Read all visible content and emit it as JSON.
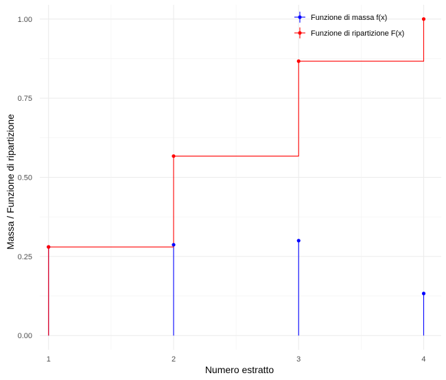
{
  "chart_data": {
    "type": "line",
    "xlabel": "Numero estratto",
    "ylabel": "Massa / Funzione di ripartizione",
    "x": [
      1,
      2,
      3,
      4
    ],
    "xlim": [
      0.93,
      4.14
    ],
    "ylim": [
      -0.045,
      1.045
    ],
    "x_ticks": [
      1,
      2,
      3,
      4
    ],
    "x_tick_labels": [
      "1",
      "2",
      "3",
      "4"
    ],
    "y_ticks": [
      0,
      0.25,
      0.5,
      0.75,
      1
    ],
    "y_tick_labels": [
      "0.00",
      "0.25",
      "0.50",
      "0.75",
      "1.00"
    ],
    "grid": true,
    "legend_position": "top-right",
    "series": [
      {
        "name": "Funzione di massa f(x)",
        "style": "stem",
        "color": "#0000FF",
        "values": [
          0.28,
          0.287,
          0.3,
          0.133
        ]
      },
      {
        "name": "Funzione di ripartizione F(x)",
        "style": "step",
        "color": "#FF0000",
        "values": [
          0.28,
          0.567,
          0.867,
          1.0
        ]
      }
    ]
  }
}
